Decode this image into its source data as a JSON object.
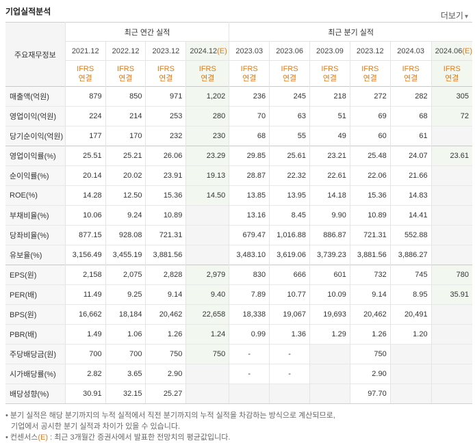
{
  "title": "기업실적분석",
  "more_label": "더보기",
  "more_icon": "chevron-down-icon",
  "corner_label": "주요재무정보",
  "group_annual": "최근 연간 실적",
  "group_quarter": "최근 분기 실적",
  "periods": [
    {
      "date": "2021.12",
      "est": ""
    },
    {
      "date": "2022.12",
      "est": ""
    },
    {
      "date": "2023.12",
      "est": ""
    },
    {
      "date": "2024.12",
      "est": "(E)"
    },
    {
      "date": "2023.03",
      "est": ""
    },
    {
      "date": "2023.06",
      "est": ""
    },
    {
      "date": "2023.09",
      "est": ""
    },
    {
      "date": "2023.12",
      "est": ""
    },
    {
      "date": "2024.03",
      "est": ""
    },
    {
      "date": "2024.06",
      "est": "(E)"
    }
  ],
  "ifrs_line1": "IFRS",
  "ifrs_line2": "연결",
  "rows": [
    {
      "label": "매출액(억원)",
      "values": [
        "879",
        "850",
        "971",
        "1,202",
        "236",
        "245",
        "218",
        "272",
        "282",
        "305"
      ]
    },
    {
      "label": "영업이익(억원)",
      "values": [
        "224",
        "214",
        "253",
        "280",
        "70",
        "63",
        "51",
        "69",
        "68",
        "72"
      ]
    },
    {
      "label": "당기순이익(억원)",
      "values": [
        "177",
        "170",
        "232",
        "230",
        "68",
        "55",
        "49",
        "60",
        "61",
        ""
      ]
    },
    {
      "label": "영업이익률(%)",
      "values": [
        "25.51",
        "25.21",
        "26.06",
        "23.29",
        "29.85",
        "25.61",
        "23.21",
        "25.48",
        "24.07",
        "23.61"
      ]
    },
    {
      "label": "순이익률(%)",
      "values": [
        "20.14",
        "20.02",
        "23.91",
        "19.13",
        "28.87",
        "22.32",
        "22.61",
        "22.06",
        "21.66",
        ""
      ]
    },
    {
      "label": "ROE(%)",
      "values": [
        "14.28",
        "12.50",
        "15.36",
        "14.50",
        "13.85",
        "13.95",
        "14.18",
        "15.36",
        "14.83",
        ""
      ]
    },
    {
      "label": "부채비율(%)",
      "values": [
        "10.06",
        "9.24",
        "10.89",
        "",
        "13.16",
        "8.45",
        "9.90",
        "10.89",
        "14.41",
        ""
      ]
    },
    {
      "label": "당좌비율(%)",
      "values": [
        "877.15",
        "928.08",
        "721.31",
        "",
        "679.47",
        "1,016.88",
        "886.87",
        "721.31",
        "552.88",
        ""
      ]
    },
    {
      "label": "유보율(%)",
      "values": [
        "3,156.49",
        "3,455.19",
        "3,881.56",
        "",
        "3,483.10",
        "3,619.06",
        "3,739.23",
        "3,881.56",
        "3,886.27",
        ""
      ]
    },
    {
      "label": "EPS(원)",
      "values": [
        "2,158",
        "2,075",
        "2,828",
        "2,979",
        "830",
        "666",
        "601",
        "732",
        "745",
        "780"
      ]
    },
    {
      "label": "PER(배)",
      "values": [
        "11.49",
        "9.25",
        "9.14",
        "9.40",
        "7.89",
        "10.77",
        "10.09",
        "9.14",
        "8.95",
        "35.91"
      ]
    },
    {
      "label": "BPS(원)",
      "values": [
        "16,662",
        "18,184",
        "20,462",
        "22,658",
        "18,338",
        "19,067",
        "19,693",
        "20,462",
        "20,491",
        ""
      ]
    },
    {
      "label": "PBR(배)",
      "values": [
        "1.49",
        "1.06",
        "1.26",
        "1.24",
        "0.99",
        "1.36",
        "1.29",
        "1.26",
        "1.20",
        ""
      ]
    },
    {
      "label": "주당배당금(원)",
      "values": [
        "700",
        "700",
        "750",
        "750",
        "-",
        "-",
        "",
        "750",
        "",
        ""
      ]
    },
    {
      "label": "시가배당률(%)",
      "values": [
        "2.82",
        "3.65",
        "2.90",
        "",
        "-",
        "-",
        "",
        "2.90",
        "",
        ""
      ]
    },
    {
      "label": "배당성향(%)",
      "values": [
        "30.91",
        "32.15",
        "25.27",
        "",
        "",
        "",
        "",
        "97.70",
        "",
        ""
      ]
    }
  ],
  "notes": {
    "line1": "분기 실적은 해당 분기까지의 누적 실적에서 직전 분기까지의 누적 실적을 차감하는 방식으로 계산되므로,",
    "line2": "기업에서 공시한 분기 실적과 차이가 있을 수 있습니다.",
    "line3_prefix": "컨센서스",
    "line3_mark": "(E)",
    "line3_suffix": " : 최근 3개월간 증권사에서 발표한 전망치의 평균값입니다."
  }
}
